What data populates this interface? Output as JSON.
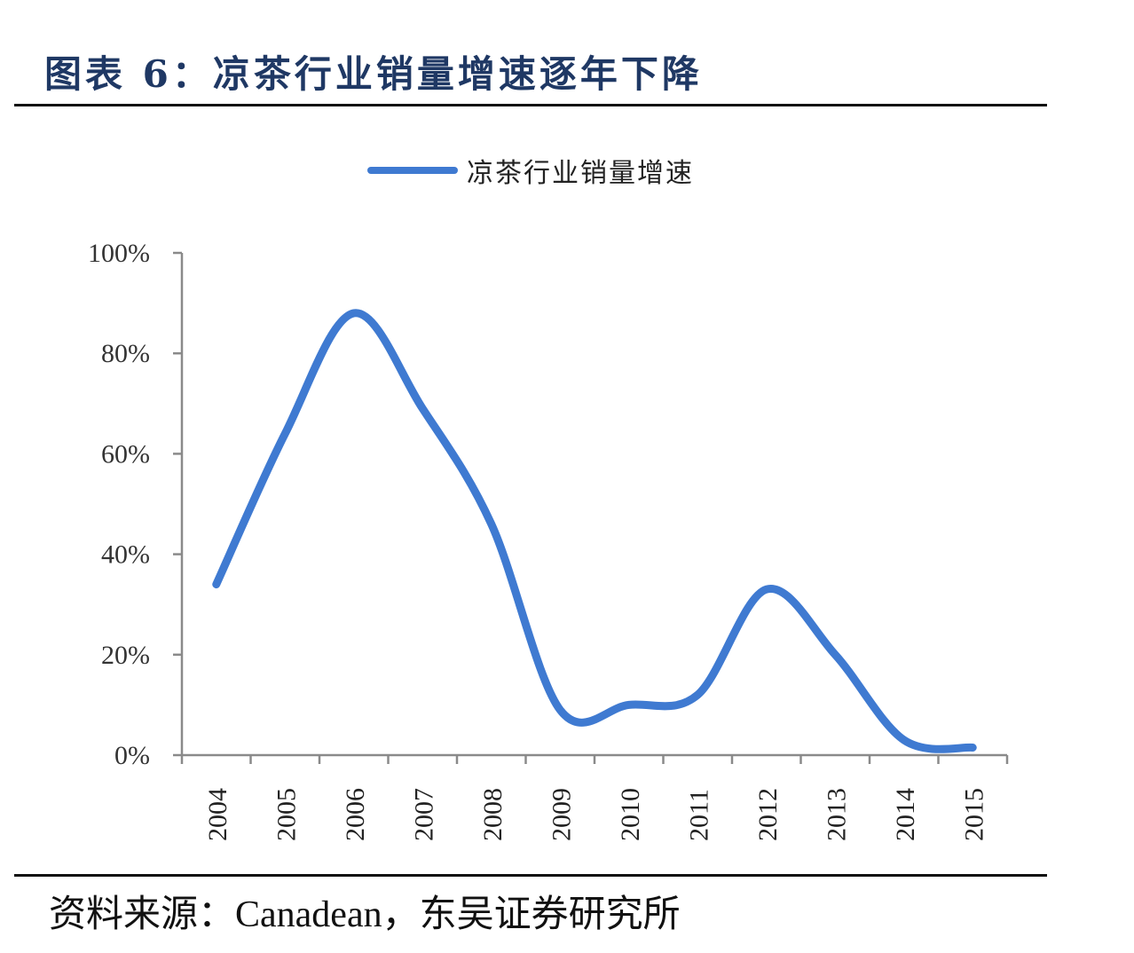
{
  "figure": {
    "title": "图表 6：凉茶行业销量增速逐年下降",
    "source": "资料来源：Canadean，东吴证券研究所"
  },
  "legend": {
    "label": "凉茶行业销量增速",
    "color": "#3f7ad1"
  },
  "chart_data": {
    "type": "line",
    "title": "图表 6：凉茶行业销量增速逐年下降",
    "xlabel": "",
    "ylabel": "",
    "categories": [
      "2004",
      "2005",
      "2006",
      "2007",
      "2008",
      "2009",
      "2010",
      "2011",
      "2012",
      "2013",
      "2014",
      "2015"
    ],
    "series": [
      {
        "name": "凉茶行业销量增速",
        "color": "#3f7ad1",
        "smooth": true,
        "values": [
          34,
          64,
          88,
          69,
          46,
          9,
          10,
          12,
          33,
          20,
          3,
          1.5
        ]
      }
    ],
    "ylim": [
      0,
      100
    ],
    "yticks": [
      0,
      20,
      40,
      60,
      80,
      100
    ],
    "ytick_labels": [
      "0%",
      "20%",
      "40%",
      "60%",
      "80%",
      "100%"
    ],
    "xtick_rotation": -90,
    "grid": false,
    "legend_position": "top"
  }
}
